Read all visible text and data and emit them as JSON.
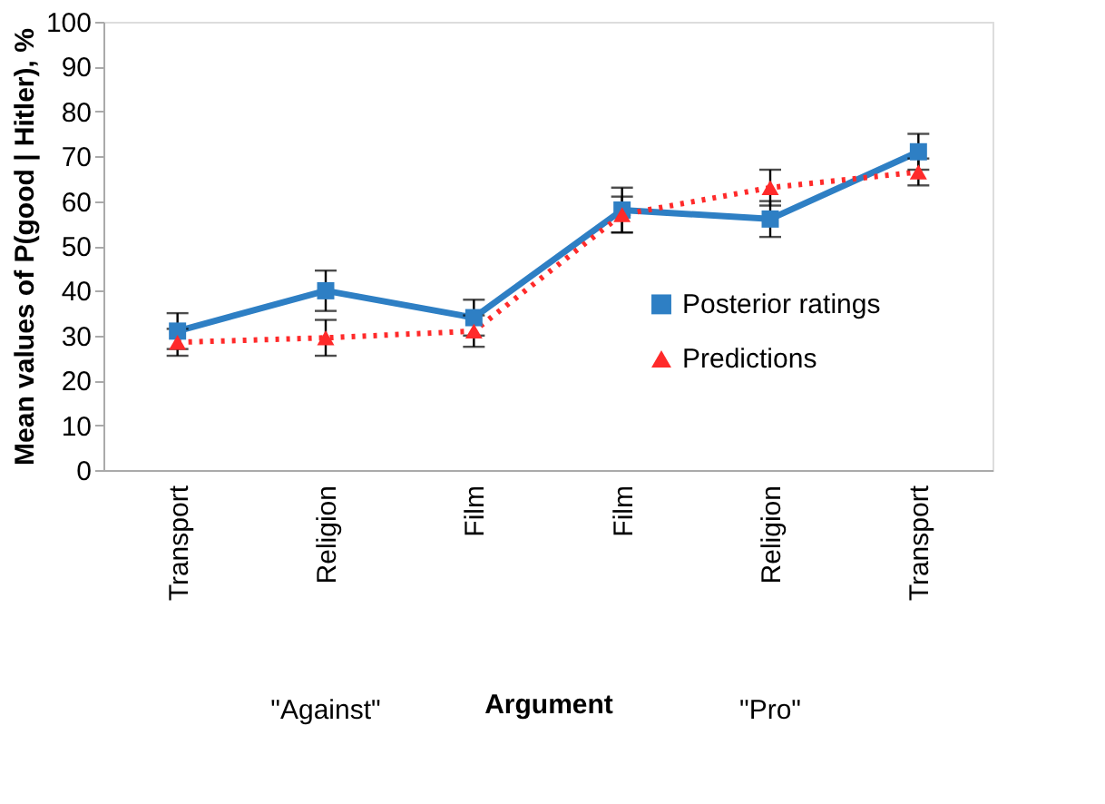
{
  "chart_data": {
    "type": "line",
    "xlabel": "Argument",
    "ylabel": "Mean values of P(good | Hitler), %",
    "categories": [
      "Transport",
      "Religion",
      "Film",
      "Film",
      "Religion",
      "Transport"
    ],
    "series": [
      {
        "name": "Posterior ratings",
        "color": "#2e7fc4",
        "marker": "square",
        "line_style": "solid",
        "values": [
          31,
          40,
          34,
          58,
          56,
          71
        ],
        "errors": [
          4,
          4.5,
          4,
          5,
          4,
          4
        ]
      },
      {
        "name": "Predictions",
        "color": "#ff2a2a",
        "marker": "triangle",
        "line_style": "dotted",
        "values": [
          28.5,
          29.5,
          31,
          57,
          63,
          66.5
        ],
        "errors": [
          3,
          4,
          3.5,
          4,
          4,
          3
        ]
      }
    ],
    "annotations": [
      "\"Against\"",
      "\"Pro\""
    ],
    "ylim": [
      0,
      100
    ],
    "yticks": [
      0,
      10,
      20,
      30,
      40,
      50,
      60,
      70,
      80,
      90,
      100
    ],
    "grid": false,
    "legend": "right"
  }
}
